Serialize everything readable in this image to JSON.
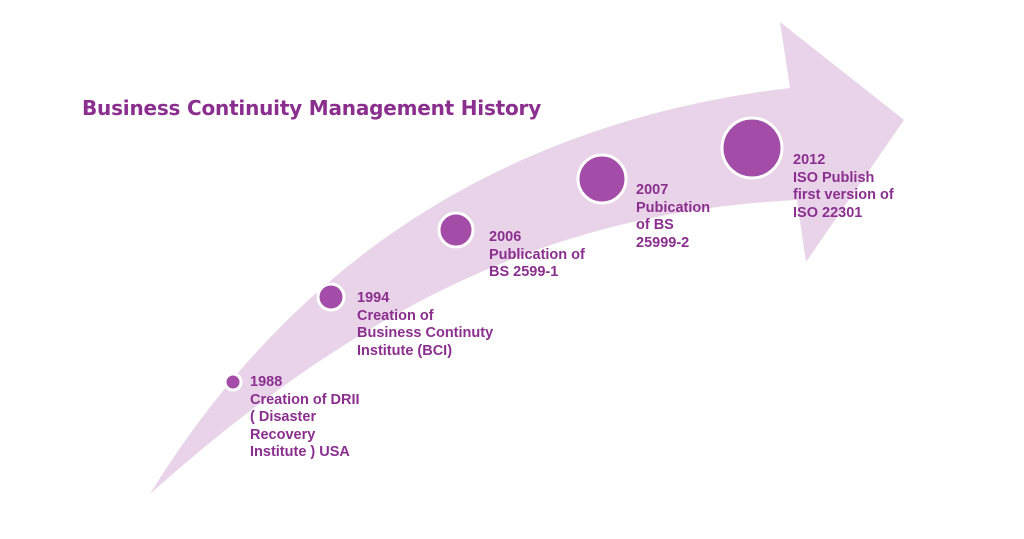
{
  "title": "Business Continuity Management History",
  "colors": {
    "arrow_fill": "#e8d3e9",
    "milestone_fill": "#a34da8",
    "milestone_ring": "#ffffff",
    "text": "#8b2f8f"
  },
  "milestones": [
    {
      "year": "1988",
      "lines": [
        "Creation of DRII",
        "( Disaster",
        "Recovery",
        "Institute ) USA"
      ]
    },
    {
      "year": "1994",
      "lines": [
        "Creation of",
        "Business Continuty",
        "Institute (BCI)"
      ]
    },
    {
      "year": "2006",
      "lines": [
        "Publication of",
        "BS 2599-1"
      ]
    },
    {
      "year": "2007",
      "lines": [
        "Pubication",
        "of BS",
        "25999-2"
      ]
    },
    {
      "year": "2012",
      "lines": [
        "ISO Publish",
        "first version of",
        "ISO 22301"
      ]
    }
  ]
}
